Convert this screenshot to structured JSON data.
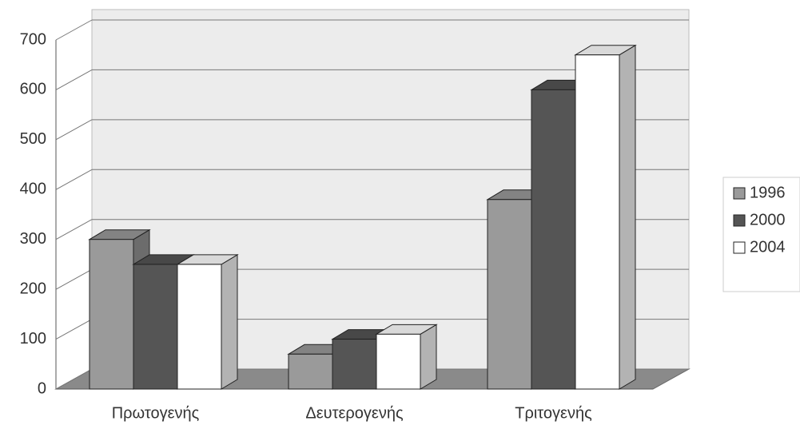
{
  "chart_data": {
    "type": "bar3d",
    "categories": [
      "Πρωτογενής",
      "Δευτερογενής",
      "Τριτογενής"
    ],
    "series": [
      {
        "name": "1996",
        "color": "#9a9a9a",
        "values": [
          300,
          70,
          380
        ]
      },
      {
        "name": "2000",
        "color": "#555555",
        "values": [
          250,
          100,
          600
        ]
      },
      {
        "name": "2004",
        "color": "#ffffff",
        "values": [
          250,
          110,
          670
        ]
      }
    ],
    "ylim": [
      0,
      700
    ],
    "yticks": [
      0,
      100,
      200,
      300,
      400,
      500,
      600,
      700
    ],
    "grid": true,
    "legend": "right"
  }
}
